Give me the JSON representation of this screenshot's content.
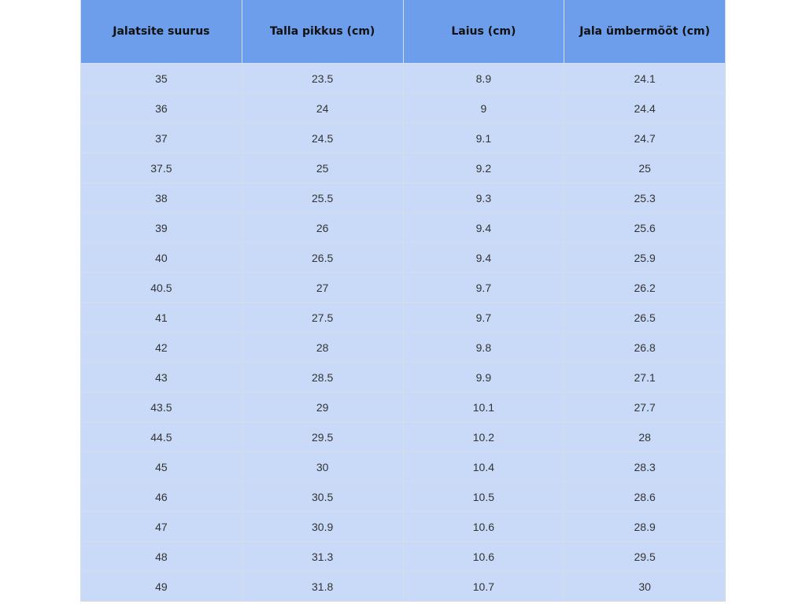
{
  "colors": {
    "header_bg": "#6d9eeb",
    "row_bg": "#c9daf8"
  },
  "table": {
    "headers": [
      "Jalatsite suurus",
      "Talla pikkus (cm)",
      "Laius (cm)",
      "Jala ümbermõõt (cm)"
    ],
    "rows": [
      [
        "35",
        "23.5",
        "8.9",
        "24.1"
      ],
      [
        "36",
        "24",
        "9",
        "24.4"
      ],
      [
        "37",
        "24.5",
        "9.1",
        "24.7"
      ],
      [
        "37.5",
        "25",
        "9.2",
        "25"
      ],
      [
        "38",
        "25.5",
        "9.3",
        "25.3"
      ],
      [
        "39",
        "26",
        "9.4",
        "25.6"
      ],
      [
        "40",
        "26.5",
        "9.4",
        "25.9"
      ],
      [
        "40.5",
        "27",
        "9.7",
        "26.2"
      ],
      [
        "41",
        "27.5",
        "9.7",
        "26.5"
      ],
      [
        "42",
        "28",
        "9.8",
        "26.8"
      ],
      [
        "43",
        "28.5",
        "9.9",
        "27.1"
      ],
      [
        "43.5",
        "29",
        "10.1",
        "27.7"
      ],
      [
        "44.5",
        "29.5",
        "10.2",
        "28"
      ],
      [
        "45",
        "30",
        "10.4",
        "28.3"
      ],
      [
        "46",
        "30.5",
        "10.5",
        "28.6"
      ],
      [
        "47",
        "30.9",
        "10.6",
        "28.9"
      ],
      [
        "48",
        "31.3",
        "10.6",
        "29.5"
      ],
      [
        "49",
        "31.8",
        "10.7",
        "30"
      ]
    ]
  }
}
